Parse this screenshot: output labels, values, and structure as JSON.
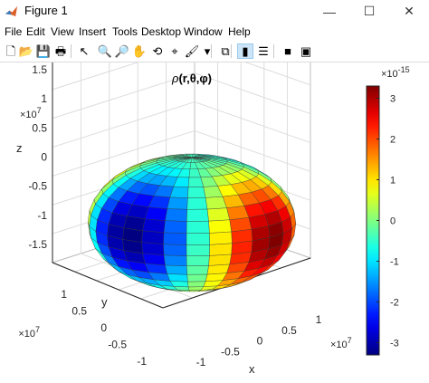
{
  "window": {
    "title": "Figure 1"
  },
  "controls": {
    "minimize": "—",
    "maximize": "☐",
    "close": "✕"
  },
  "menus": [
    "File",
    "Edit",
    "View",
    "Insert",
    "Tools",
    "Desktop",
    "Window",
    "Help"
  ],
  "toolbar": {
    "buttons": [
      {
        "name": "new-figure-icon",
        "glyph": "🗋"
      },
      {
        "name": "open-file-icon",
        "glyph": "📂"
      },
      {
        "name": "save-icon",
        "glyph": "💾"
      },
      {
        "name": "print-icon",
        "glyph": "🖶"
      },
      {
        "name": "edit-plot-arrow-icon",
        "glyph": "↖"
      },
      {
        "name": "zoom-in-icon",
        "glyph": "🔍"
      },
      {
        "name": "zoom-out-icon",
        "glyph": "🔎"
      },
      {
        "name": "pan-hand-icon",
        "glyph": "✋"
      },
      {
        "name": "rotate-3d-icon",
        "glyph": "⟲"
      },
      {
        "name": "data-cursor-icon",
        "glyph": "⌖"
      },
      {
        "name": "brush-icon",
        "glyph": "🖌"
      },
      {
        "name": "brush-dropdown-icon",
        "glyph": "▾"
      },
      {
        "name": "link-plot-icon",
        "glyph": "⧉"
      },
      {
        "name": "insert-colorbar-icon",
        "glyph": "▮"
      },
      {
        "name": "insert-legend-icon",
        "glyph": "☰"
      },
      {
        "name": "hide-plot-tools-icon",
        "glyph": "■"
      },
      {
        "name": "show-plot-tools-icon",
        "glyph": "▣"
      }
    ]
  },
  "plot": {
    "title_var": "ρ",
    "title_args": "(r,θ,φ)",
    "z_axis": {
      "label": "z",
      "exponent_base": "×10",
      "exponent": "7",
      "ticks": [
        "1.5",
        "1",
        "0.5",
        "0",
        "-0.5",
        "-1",
        "-1.5"
      ]
    },
    "y_axis": {
      "label": "y",
      "exponent_base": "×10",
      "exponent": "7",
      "ticks": [
        "1",
        "0.5",
        "0",
        "-0.5",
        "-1"
      ]
    },
    "x_axis": {
      "label": "x",
      "exponent_base": "×10",
      "exponent": "7",
      "ticks": [
        "-1",
        "-0.5",
        "0",
        "0.5",
        "1"
      ]
    },
    "colorbar": {
      "exponent_base": "×10",
      "exponent": "-15",
      "ticks": [
        "3",
        "2",
        "1",
        "0",
        "-1",
        "-2",
        "-3"
      ],
      "range": [
        -3.3,
        3.3
      ],
      "colormap": "jet"
    }
  }
}
